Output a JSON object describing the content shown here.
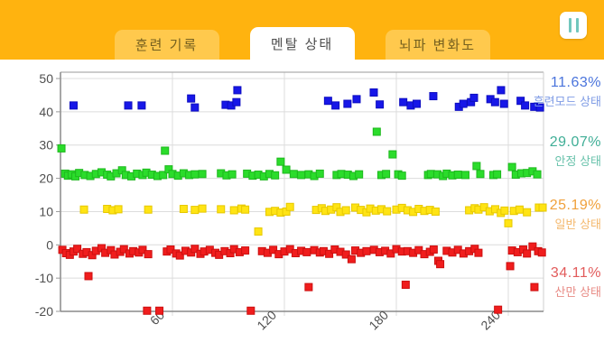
{
  "header": {
    "tabs": [
      {
        "label": "훈련 기록",
        "active": false
      },
      {
        "label": "멘탈 상태",
        "active": true
      },
      {
        "label": "뇌파 변화도",
        "active": false
      }
    ],
    "pause_icon": "pause"
  },
  "colors": {
    "header_bg": "#ffb30f",
    "tab_bg": "#ffc94d",
    "tab_fg": "#75601f",
    "tab_active_bg": "#ffffff",
    "tab_active_fg": "#4c4c4c",
    "pause_bar": "#72c7bd",
    "chart_bg": "#ffffff",
    "grid": "#dcdcdc",
    "axis": "#8a8a8a",
    "tick_text": "#4f4f4f"
  },
  "chart_data": {
    "type": "scatter",
    "title": "",
    "xlabel": "",
    "ylabel": "",
    "xlim": [
      0,
      259
    ],
    "ylim": [
      -20,
      52
    ],
    "x_ticks": [
      60,
      120,
      180,
      240
    ],
    "y_ticks": [
      50,
      40,
      30,
      20,
      10,
      0,
      -10,
      -20
    ],
    "grid": true,
    "legend_position": "right",
    "series": [
      {
        "name": "훈련모드 상태",
        "percent": "11.63%",
        "color": "#1717e8",
        "edge_color": "#0d0dc0",
        "percent_color": "#4a74dc",
        "name_color": "#7f9ce5",
        "points": [
          [
            7,
            41.9
          ],
          [
            36.3,
            41.9
          ],
          [
            43.5,
            41.9
          ],
          [
            70,
            44
          ],
          [
            72,
            41.3
          ],
          [
            88.5,
            42.1
          ],
          [
            91.5,
            41.9
          ],
          [
            94.3,
            42.9
          ],
          [
            94.8,
            46.5
          ],
          [
            143.4,
            43.3
          ],
          [
            147.4,
            41.9
          ],
          [
            153.8,
            42.4
          ],
          [
            158.7,
            43.8
          ],
          [
            167.9,
            45.8
          ],
          [
            171.1,
            42.2
          ],
          [
            183.7,
            42.9
          ],
          [
            187.7,
            41.9
          ],
          [
            190.9,
            42.4
          ],
          [
            199.8,
            44.7
          ],
          [
            213.5,
            41.5
          ],
          [
            215.9,
            42.4
          ],
          [
            220,
            42.9
          ],
          [
            221.6,
            44.2
          ],
          [
            230.4,
            43.8
          ],
          [
            232.9,
            42.9
          ],
          [
            236.1,
            46.5
          ],
          [
            237.7,
            42.4
          ],
          [
            246.6,
            43.3
          ],
          [
            249,
            41.9
          ],
          [
            253.9,
            41.5
          ],
          [
            257,
            41.3
          ]
        ]
      },
      {
        "name": "안정 상태",
        "percent": "29.07%",
        "color": "#2bdc2b",
        "edge_color": "#1db81d",
        "percent_color": "#3fae96",
        "name_color": "#68c2ab",
        "points": [
          [
            0.5,
            29
          ],
          [
            2.5,
            21.4
          ],
          [
            4,
            20.8
          ],
          [
            6,
            21.2
          ],
          [
            8,
            20.6
          ],
          [
            10,
            21.6
          ],
          [
            13,
            21
          ],
          [
            16,
            20.7
          ],
          [
            19,
            21.3
          ],
          [
            22,
            21.8
          ],
          [
            25,
            21.1
          ],
          [
            27,
            20.6
          ],
          [
            30,
            21.5
          ],
          [
            33,
            22.4
          ],
          [
            35,
            21
          ],
          [
            38,
            20.6
          ],
          [
            41,
            21.4
          ],
          [
            44,
            21
          ],
          [
            46,
            21.7
          ],
          [
            49,
            21.1
          ],
          [
            52,
            20.7
          ],
          [
            55,
            21
          ],
          [
            56,
            28.3
          ],
          [
            58,
            22.7
          ],
          [
            60,
            21.3
          ],
          [
            63,
            20.8
          ],
          [
            66,
            21.5
          ],
          [
            69,
            21
          ],
          [
            72,
            21.2
          ],
          [
            76,
            21.3
          ],
          [
            86,
            21.5
          ],
          [
            89,
            20.9
          ],
          [
            92,
            21.2
          ],
          [
            100,
            21.4
          ],
          [
            103,
            20.8
          ],
          [
            106,
            21.1
          ],
          [
            109,
            20.6
          ],
          [
            112,
            21.3
          ],
          [
            115,
            20.9
          ],
          [
            118,
            25
          ],
          [
            121,
            22.6
          ],
          [
            125,
            21.3
          ],
          [
            129,
            21
          ],
          [
            133,
            21.2
          ],
          [
            136,
            20.7
          ],
          [
            139,
            21.4
          ],
          [
            148,
            21
          ],
          [
            150.5,
            21.3
          ],
          [
            154,
            21.1
          ],
          [
            157,
            20.7
          ],
          [
            160,
            21.2
          ],
          [
            169.5,
            34
          ],
          [
            172,
            21
          ],
          [
            174.5,
            21.3
          ],
          [
            178,
            27.2
          ],
          [
            181,
            21.2
          ],
          [
            183,
            20.8
          ],
          [
            197,
            21
          ],
          [
            198.5,
            21.3
          ],
          [
            202,
            21.2
          ],
          [
            205,
            20.7
          ],
          [
            207,
            21.4
          ],
          [
            210,
            20.9
          ],
          [
            213,
            21.1
          ],
          [
            217,
            21
          ],
          [
            223,
            23.7
          ],
          [
            225,
            21.3
          ],
          [
            232,
            21
          ],
          [
            234,
            21.2
          ],
          [
            242,
            23.4
          ],
          [
            244,
            21.1
          ],
          [
            247,
            21.5
          ],
          [
            250,
            21.6
          ],
          [
            253,
            22.1
          ],
          [
            255.5,
            21.2
          ]
        ]
      },
      {
        "name": "일반 상태",
        "percent": "25.19%",
        "color": "#ffe414",
        "edge_color": "#e6c800",
        "percent_color": "#f0a13c",
        "name_color": "#f4b86d",
        "points": [
          [
            12.6,
            10.6
          ],
          [
            25,
            10.8
          ],
          [
            28,
            10.4
          ],
          [
            31,
            10.7
          ],
          [
            47,
            10.6
          ],
          [
            66,
            10.8
          ],
          [
            72,
            10.5
          ],
          [
            76,
            10.9
          ],
          [
            86,
            10.7
          ],
          [
            93,
            10.4
          ],
          [
            97,
            10.9
          ],
          [
            99,
            10.6
          ],
          [
            106,
            4
          ],
          [
            112,
            9.9
          ],
          [
            115,
            10.2
          ],
          [
            118,
            9.7
          ],
          [
            121,
            10
          ],
          [
            123,
            11.4
          ],
          [
            137,
            10.5
          ],
          [
            140,
            11
          ],
          [
            142,
            10.2
          ],
          [
            145,
            10.6
          ],
          [
            148,
            11.3
          ],
          [
            150,
            9.9
          ],
          [
            153,
            10.4
          ],
          [
            158,
            11.2
          ],
          [
            161,
            10.5
          ],
          [
            164,
            9.8
          ],
          [
            166,
            10.9
          ],
          [
            169,
            10.3
          ],
          [
            172,
            10.7
          ],
          [
            175,
            10.1
          ],
          [
            180,
            10.6
          ],
          [
            183,
            11.1
          ],
          [
            186,
            10.4
          ],
          [
            189,
            9.9
          ],
          [
            192,
            10.8
          ],
          [
            195,
            10.2
          ],
          [
            198,
            10.5
          ],
          [
            201,
            10
          ],
          [
            219,
            10.4
          ],
          [
            222,
            11
          ],
          [
            224,
            10.6
          ],
          [
            227,
            11.3
          ],
          [
            230,
            10.1
          ],
          [
            233,
            10.7
          ],
          [
            236,
            9.6
          ],
          [
            238,
            10.3
          ],
          [
            240,
            6.5
          ],
          [
            243,
            10.2
          ],
          [
            246,
            10.6
          ],
          [
            250,
            9.8
          ],
          [
            256.4,
            11.2
          ],
          [
            258.4,
            11.2
          ]
        ]
      },
      {
        "name": "산만 상태",
        "percent": "34.11%",
        "color": "#f01d1d",
        "edge_color": "#cc0f0f",
        "percent_color": "#e25b5b",
        "name_color": "#e88b85",
        "points": [
          [
            1,
            -1.5
          ],
          [
            3,
            -2.5
          ],
          [
            5,
            -3
          ],
          [
            7,
            -2
          ],
          [
            9,
            -1.2
          ],
          [
            12,
            -2.7
          ],
          [
            14,
            -2.2
          ],
          [
            15,
            -9.4
          ],
          [
            17,
            -3.1
          ],
          [
            19,
            -1.8
          ],
          [
            22,
            -1
          ],
          [
            24,
            -2.4
          ],
          [
            27,
            -1.6
          ],
          [
            29,
            -2.9
          ],
          [
            32,
            -2.1
          ],
          [
            34,
            -1.3
          ],
          [
            37,
            -2.6
          ],
          [
            39,
            -1.9
          ],
          [
            42,
            -2.3
          ],
          [
            44,
            -1.5
          ],
          [
            46.4,
            -19.8
          ],
          [
            47,
            -2.8
          ],
          [
            53,
            -19.8
          ],
          [
            57,
            -2
          ],
          [
            59,
            -1.4
          ],
          [
            62,
            -2.6
          ],
          [
            64,
            -3.2
          ],
          [
            67,
            -1.8
          ],
          [
            70,
            -2.3
          ],
          [
            72,
            -1.2
          ],
          [
            75,
            -2.7
          ],
          [
            77,
            -2
          ],
          [
            80,
            -1.5
          ],
          [
            83,
            -2.4
          ],
          [
            85,
            -3
          ],
          [
            88,
            -1.9
          ],
          [
            91,
            -2.5
          ],
          [
            93,
            -1.3
          ],
          [
            96,
            -2.2
          ],
          [
            99,
            -1.7
          ],
          [
            102,
            -19.8
          ],
          [
            108,
            -1.9
          ],
          [
            111,
            -2.4
          ],
          [
            114,
            -1.5
          ],
          [
            117,
            -2.8
          ],
          [
            120,
            -2
          ],
          [
            123,
            -1.3
          ],
          [
            126,
            -2.5
          ],
          [
            129,
            -1.8
          ],
          [
            132,
            -2.2
          ],
          [
            133,
            -12.7
          ],
          [
            136,
            -1.6
          ],
          [
            139,
            -2.3
          ],
          [
            141,
            -1.9
          ],
          [
            144,
            -2.7
          ],
          [
            147,
            -1.4
          ],
          [
            150,
            -2.1
          ],
          [
            153,
            -2.9
          ],
          [
            156,
            -4.3
          ],
          [
            158,
            -1.7
          ],
          [
            161,
            -2.4
          ],
          [
            164,
            -1.9
          ],
          [
            168,
            -1.5
          ],
          [
            171,
            -2.2
          ],
          [
            174,
            -1.8
          ],
          [
            177,
            -2.6
          ],
          [
            180,
            -1.3
          ],
          [
            183,
            -2
          ],
          [
            185,
            -12
          ],
          [
            186,
            -1.9
          ],
          [
            189,
            -2.4
          ],
          [
            192,
            -1.6
          ],
          [
            195,
            -2.8
          ],
          [
            198,
            -2.1
          ],
          [
            200,
            -1.4
          ],
          [
            202.5,
            -4.8
          ],
          [
            203.5,
            -5.8
          ],
          [
            207,
            -1.8
          ],
          [
            210,
            -2.3
          ],
          [
            213,
            -1.5
          ],
          [
            216,
            -2.6
          ],
          [
            219,
            -1.9
          ],
          [
            222,
            -1.2
          ],
          [
            224,
            -2.4
          ],
          [
            234.5,
            -19.5
          ],
          [
            241,
            -6.4
          ],
          [
            242,
            -1.7
          ],
          [
            245,
            -2.2
          ],
          [
            248,
            -1.4
          ],
          [
            250,
            -2.6
          ],
          [
            253,
            -0.5
          ],
          [
            254,
            -12.7
          ],
          [
            256,
            -1.9
          ],
          [
            258,
            -2.3
          ]
        ]
      }
    ]
  }
}
